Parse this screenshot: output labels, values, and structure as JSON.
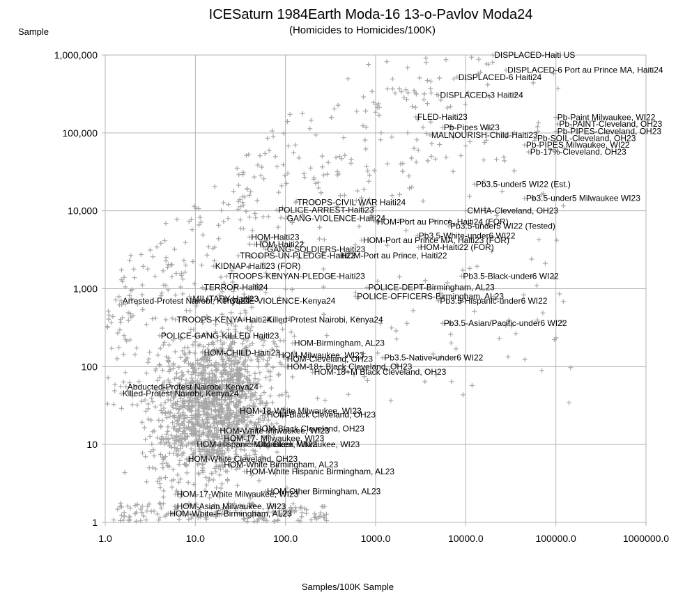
{
  "chart_data": {
    "type": "scatter",
    "title": "ICESaturn 1984Earth Moda-16 13-o-Pavlov Moda24",
    "subtitle": "(Homicides to Homicides/100K)",
    "xlabel": "Samples/100K Sample",
    "ylabel": "Sample",
    "x_scale": "log",
    "y_scale": "log",
    "xlim": [
      1,
      1000000
    ],
    "ylim": [
      1,
      1000000
    ],
    "x_tick_labels": [
      "1.0",
      "10.0",
      "100.0",
      "1000.0",
      "10000.0",
      "100000.0",
      "1000000.0"
    ],
    "y_tick_labels": [
      "1",
      "10",
      "100",
      "1,000",
      "10,000",
      "100,000",
      "1,000,000"
    ],
    "grid": true,
    "marker": "plus",
    "marker_color": "#a6a6a6",
    "background_point_count": 2200,
    "labeled_points": [
      {
        "label": "DISPLACED-Haiti US",
        "x": 20000,
        "y": 1000000
      },
      {
        "label": "DISPLACED-6 Port au Prince MA, Haiti24",
        "x": 28000,
        "y": 640000
      },
      {
        "label": "DISPLACED-6 Haiti24",
        "x": 8000,
        "y": 520000
      },
      {
        "label": "DISPLACED-3 Haiti24",
        "x": 5000,
        "y": 305000
      },
      {
        "label": "FLED-Haiti23",
        "x": 2800,
        "y": 160000
      },
      {
        "label": "Pb-Paint Milwaukee, WI22",
        "x": 100000,
        "y": 158000
      },
      {
        "label": "Pb-PAINT-Cleveland, OH23",
        "x": 105000,
        "y": 130000
      },
      {
        "label": "Pb-Pipes WI23",
        "x": 5500,
        "y": 118000
      },
      {
        "label": "Pb-PIPES-Cleveland, OH23",
        "x": 100000,
        "y": 105000
      },
      {
        "label": "MALNOURISH-Child-Haiti23",
        "x": 4000,
        "y": 94000
      },
      {
        "label": "Pb-SOIL-Cleveland, OH23",
        "x": 60000,
        "y": 85000
      },
      {
        "label": "Pb-PIPES Milwaukee, WI22",
        "x": 45000,
        "y": 70000
      },
      {
        "label": "Pb-17%-Cleveland, OH23",
        "x": 50000,
        "y": 57000
      },
      {
        "label": "Pb3.5-under5 WI22 (Est.)",
        "x": 12500,
        "y": 22000
      },
      {
        "label": "Pb3.5-under5 Milwaukee WI23",
        "x": 45000,
        "y": 14500
      },
      {
        "label": "TROOPS-CIVIL WAR Haiti24",
        "x": 130,
        "y": 12800
      },
      {
        "label": "POLICE-ARREST-Haiti23",
        "x": 80,
        "y": 10200
      },
      {
        "label": "CMHA-Cleveland, OH23",
        "x": 10000,
        "y": 10000
      },
      {
        "label": "GANG-VIOLENCE-Haiti24",
        "x": 100,
        "y": 8000
      },
      {
        "label": "HOM-Port au Prince, Haiti24 (FOR)",
        "x": 1000,
        "y": 7200
      },
      {
        "label": "Pb3.5-under5 WI22 (Tested)",
        "x": 6500,
        "y": 6400
      },
      {
        "label": "Pb3.5-White-under6 WI22",
        "x": 2900,
        "y": 4800
      },
      {
        "label": "HOM-Haiti23",
        "x": 40,
        "y": 4600
      },
      {
        "label": "HOM-Port au Prince MA, Haiti23 (FOR)",
        "x": 700,
        "y": 4200
      },
      {
        "label": "HOM-Haiti22",
        "x": 45,
        "y": 3700
      },
      {
        "label": "HOM-Haiti22 (FOR)",
        "x": 3000,
        "y": 3400
      },
      {
        "label": "GANG-SOLDIERS-Haiti23",
        "x": 60,
        "y": 3200
      },
      {
        "label": "HOM-Port au Prince, Haiti22",
        "x": 400,
        "y": 2650
      },
      {
        "label": "TROOPS-UN-PLEDGE-Haiti23",
        "x": 30,
        "y": 2650
      },
      {
        "label": "KIDNAP-Haiti23 (FOR)",
        "x": 16,
        "y": 1950
      },
      {
        "label": "TROOPS-KENYAN-PLEDGE-Haiti23",
        "x": 22,
        "y": 1450
      },
      {
        "label": "Pb3.5-Black-under6 WI22",
        "x": 9000,
        "y": 1450
      },
      {
        "label": "TERROR-Haiti24",
        "x": 12,
        "y": 1040
      },
      {
        "label": "POLICE-DEPT-Birmingham, AL23",
        "x": 800,
        "y": 1040
      },
      {
        "label": "POLICE-OFFICERS-Birmingham, AL23",
        "x": 600,
        "y": 800
      },
      {
        "label": "MILITARY Haiti23",
        "x": 9,
        "y": 740
      },
      {
        "label": "Pb3.5-Hispanic-under6 WI22",
        "x": 5000,
        "y": 700
      },
      {
        "label": "Arrested-Protest Nairobi, Kenya24",
        "x": 1.5,
        "y": 700
      },
      {
        "label": "POLICE-VIOLENCE-Kenya24",
        "x": 20,
        "y": 700
      },
      {
        "label": "TROOPS-KENYA-Haiti24",
        "x": 6,
        "y": 400
      },
      {
        "label": "Killed-Protest Nairobi, Kenya24",
        "x": 60,
        "y": 400
      },
      {
        "label": "Pb3.5-Asian/Pacific-under6 WI22",
        "x": 5500,
        "y": 360
      },
      {
        "label": "POLICE-GANG-KILLED Haiti23",
        "x": 4,
        "y": 250
      },
      {
        "label": "HOM-Birmingham, AL23",
        "x": 120,
        "y": 200
      },
      {
        "label": "HOM-CHILD-Haiti23",
        "x": 12,
        "y": 150
      },
      {
        "label": "HOM-Milwaukee, WI23",
        "x": 80,
        "y": 140
      },
      {
        "label": "HOM-Cleveland, OH23",
        "x": 100,
        "y": 125
      },
      {
        "label": "Pb3.5-Native-under6 WI22",
        "x": 1200,
        "y": 130
      },
      {
        "label": "HOM-18+ Black Cleveland, OH23",
        "x": 100,
        "y": 100
      },
      {
        "label": "HOM-18+M Black Cleveland, OH23",
        "x": 200,
        "y": 85
      },
      {
        "label": "Abducted-Protest Nairobi, Kenya24",
        "x": 1.7,
        "y": 55
      },
      {
        "label": "Killed-Protest Nairobi, Kenya24",
        "x": 1.5,
        "y": 45
      },
      {
        "label": "HOM-18-White Milwaukee, WI23",
        "x": 30,
        "y": 27
      },
      {
        "label": "HOM-Black Cleveland, OH23",
        "x": 60,
        "y": 24
      },
      {
        "label": "HOM-White Milwaukee, WI23",
        "x": 18,
        "y": 15
      },
      {
        "label": "HOM-Black Cleveland, OH23",
        "x": 45,
        "y": 16
      },
      {
        "label": "HOM-17- Milwaukee, WI23",
        "x": 20,
        "y": 12
      },
      {
        "label": "HOM-Hispanic Milwaukee, WI22",
        "x": 10,
        "y": 10
      },
      {
        "label": "HOM-Black Milwaukee, WI23",
        "x": 40,
        "y": 10
      },
      {
        "label": "HOM-White Cleveland, OH23",
        "x": 8,
        "y": 6.5
      },
      {
        "label": "HOM-White Birmingham, AL23",
        "x": 20,
        "y": 5.5
      },
      {
        "label": "HOM-White Hispanic Birmingham, AL23",
        "x": 35,
        "y": 4.5
      },
      {
        "label": "HOM-17-White Milwaukee, WI23",
        "x": 6,
        "y": 2.3
      },
      {
        "label": "HOM-Other Birmingham, AL23",
        "x": 60,
        "y": 2.5
      },
      {
        "label": "HOM-Asian Milwaukee, WI23",
        "x": 6,
        "y": 1.6
      },
      {
        "label": "HOM-White-F Birmingham, AL23",
        "x": 5,
        "y": 1.3
      }
    ]
  },
  "colors": {
    "grid": "#b3b3b3",
    "axis": "#b3b3b3",
    "marker": "#a6a6a6",
    "text": "#000000"
  }
}
